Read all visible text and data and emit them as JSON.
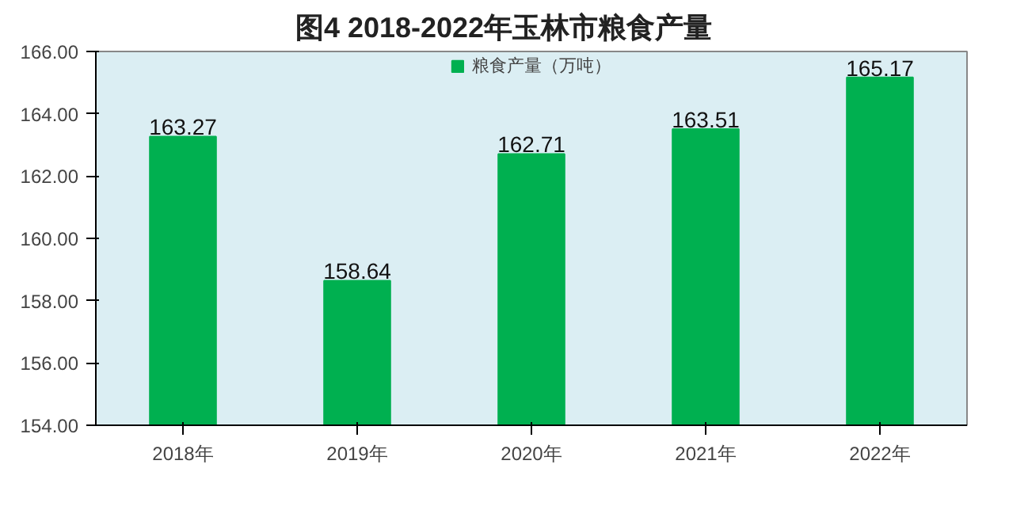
{
  "chart_data": {
    "type": "bar",
    "title": "图4        2018-2022年玉林市粮食产量",
    "categories": [
      "2018年",
      "2019年",
      "2020年",
      "2021年",
      "2022年"
    ],
    "series": [
      {
        "name": "粮食产量（万吨）",
        "color": "#00b050",
        "values": [
          163.27,
          158.64,
          162.71,
          163.51,
          165.17
        ]
      }
    ],
    "ylim": [
      154,
      166
    ],
    "yticks": [
      {
        "value": 154,
        "label": "154.00"
      },
      {
        "value": 156,
        "label": "156.00"
      },
      {
        "value": 158,
        "label": "158.00"
      },
      {
        "value": 160,
        "label": "160.00"
      },
      {
        "value": 162,
        "label": "162.00"
      },
      {
        "value": 164,
        "label": "164.00"
      },
      {
        "value": 166,
        "label": "166.00"
      }
    ],
    "data_labels": true,
    "legend": "top",
    "grid": false
  }
}
